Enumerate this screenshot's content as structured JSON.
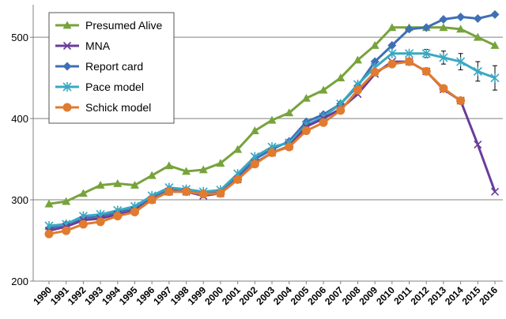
{
  "chart_data": {
    "type": "line",
    "title": "",
    "xlabel": "",
    "ylabel": "",
    "ylim": [
      200,
      540
    ],
    "yticks": [
      200,
      300,
      400,
      500
    ],
    "grid": true,
    "legend_position": "top-left",
    "categories": [
      "1990",
      "1991",
      "1992",
      "1993",
      "1994",
      "1995",
      "1996",
      "1997",
      "1998",
      "1999",
      "2000",
      "2001",
      "2002",
      "2003",
      "2004",
      "2005",
      "2006",
      "2007",
      "2008",
      "2009",
      "2010",
      "2011",
      "2012",
      "2013",
      "2014",
      "2015",
      "2016"
    ],
    "series": [
      {
        "name": "Presumed Alive",
        "color": "#77a33c",
        "marker": "triangle",
        "values": [
          295,
          298,
          308,
          318,
          320,
          318,
          330,
          342,
          335,
          337,
          345,
          362,
          385,
          398,
          407,
          425,
          435,
          450,
          472,
          490,
          512,
          512,
          512,
          512,
          510,
          500,
          490
        ]
      },
      {
        "name": "MNA",
        "color": "#6a3d9a",
        "marker": "x",
        "values": [
          262,
          267,
          275,
          277,
          282,
          287,
          300,
          310,
          310,
          305,
          308,
          325,
          345,
          358,
          366,
          390,
          400,
          412,
          430,
          455,
          470,
          470,
          458,
          436,
          422,
          368,
          310
        ]
      },
      {
        "name": "Report card",
        "color": "#3f6fb5",
        "marker": "diamond",
        "values": [
          265,
          270,
          278,
          280,
          285,
          290,
          303,
          313,
          312,
          308,
          310,
          328,
          350,
          362,
          372,
          396,
          405,
          418,
          440,
          470,
          490,
          510,
          512,
          522,
          525,
          523,
          528
        ]
      },
      {
        "name": "Pace model",
        "color": "#3aa8c1",
        "marker": "asterisk",
        "values": [
          268,
          270,
          280,
          282,
          287,
          292,
          305,
          315,
          313,
          310,
          312,
          332,
          353,
          365,
          370,
          392,
          402,
          418,
          442,
          463,
          480,
          480,
          480,
          475,
          470,
          458,
          450
        ],
        "error": [
          0,
          0,
          0,
          0,
          0,
          0,
          0,
          0,
          0,
          0,
          0,
          0,
          0,
          0,
          0,
          0,
          0,
          0,
          0,
          0,
          0,
          0,
          5,
          8,
          10,
          12,
          15
        ]
      },
      {
        "name": "Schick model",
        "color": "#e07b2f",
        "marker": "circle",
        "values": [
          258,
          262,
          270,
          273,
          280,
          285,
          300,
          310,
          310,
          307,
          308,
          325,
          344,
          358,
          365,
          385,
          395,
          410,
          435,
          457,
          467,
          470,
          458,
          437,
          422,
          null,
          null
        ]
      }
    ]
  }
}
